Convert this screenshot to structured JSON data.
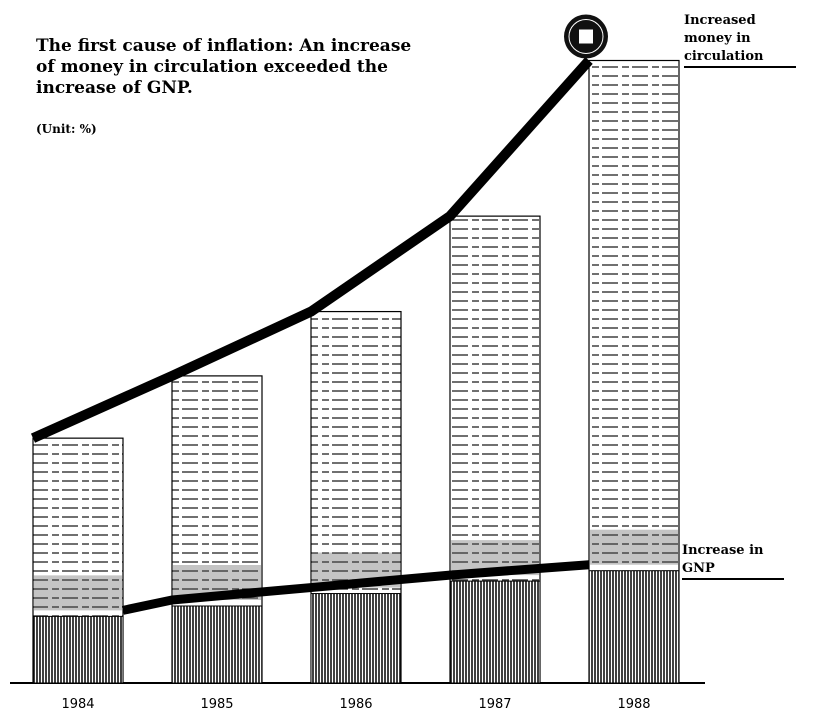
{
  "chart_data": {
    "type": "bar",
    "title": "The first cause of inflation: An increase of money in circulation exceeded the increase of GNP.",
    "subtitle": "(Unit: %)",
    "categories": [
      "1984",
      "1985",
      "1986",
      "1987",
      "1988"
    ],
    "series": [
      {
        "name": "Increased money in circulation",
        "color": "#000000",
        "values": [
          11.8,
          14.8,
          17.9,
          22.5,
          30
        ]
      },
      {
        "name": "Increase in GNP",
        "color": "#000000",
        "values": [
          3.5,
          4.0,
          4.6,
          5.2,
          5.7
        ]
      }
    ],
    "ylim": [
      0,
      32
    ]
  }
}
